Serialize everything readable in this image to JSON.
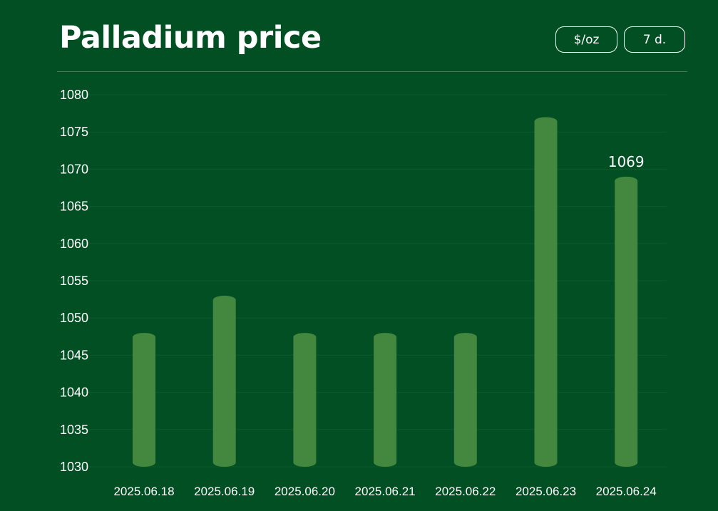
{
  "header": {
    "title": "Palladium price",
    "unit_label": "$/oz",
    "range_label": "7 d."
  },
  "colors": {
    "background": "#014F23",
    "bar": "#44873E",
    "gridline": "#0D5A2B",
    "text": "#FFFFFF"
  },
  "chart_data": {
    "type": "bar",
    "categories": [
      "2025.06.18",
      "2025.06.19",
      "2025.06.20",
      "2025.06.21",
      "2025.06.22",
      "2025.06.23",
      "2025.06.24"
    ],
    "values": [
      1048,
      1053,
      1048,
      1048,
      1048,
      1077,
      1069
    ],
    "ylim": [
      1030,
      1080
    ],
    "yticks": [
      1080,
      1075,
      1070,
      1065,
      1060,
      1055,
      1050,
      1045,
      1040,
      1035,
      1030
    ],
    "data_labels": [
      {
        "index": 6,
        "text": "1069"
      }
    ],
    "grid": true,
    "legend": "none"
  }
}
